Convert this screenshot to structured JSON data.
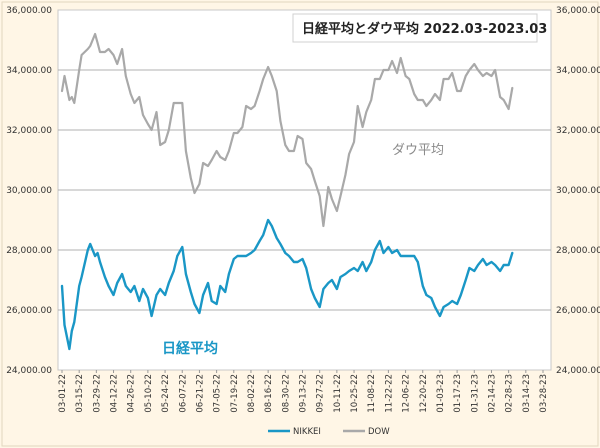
{
  "chart_data": {
    "type": "line",
    "title": "日経平均とダウ平均 2022.03-2023.03",
    "annotations": {
      "dow": "ダウ平均",
      "nikkei": "日経平均"
    },
    "ylim": [
      24000,
      36000
    ],
    "left_ticks": [
      "24,000.00",
      "26,000.00",
      "28,000.00",
      "30,000.00",
      "32,000.00",
      "34,000.00",
      "36,000.00"
    ],
    "right_ticks": [
      "24,000.00",
      "26,000.00",
      "28,000.00",
      "30,000.00",
      "32,000.00",
      "34,000.00",
      "36,000.00"
    ],
    "x_ticks": [
      "03-01-22",
      "03-15-22",
      "03-29-22",
      "04-12-22",
      "04-26-22",
      "05-10-22",
      "05-24-22",
      "06-07-22",
      "06-21-22",
      "07-05-22",
      "07-19-22",
      "08-02-22",
      "08-16-22",
      "08-30-22",
      "09-13-22",
      "09-27-22",
      "10-11-22",
      "10-25-22",
      "11-08-22",
      "11-22-22",
      "12-06-22",
      "12-20-22",
      "01-03-23",
      "01-17-23",
      "01-31-23",
      "02-14-23",
      "02-28-23",
      "03-14-23",
      "03-28-23"
    ],
    "grid": true,
    "legend_position": "bottom",
    "colors": {
      "nikkei": "#1a97c6",
      "dow": "#a9a9a9",
      "plot_bg": "#ffffff",
      "outer_bg": "#fff6e6",
      "grid": "#b0b0b0"
    },
    "series": [
      {
        "name": "NIKKEI",
        "color": "#1a97c6",
        "x": [
          "03-01-22",
          "03-03-22",
          "03-07-22",
          "03-09-22",
          "03-11-22",
          "03-15-22",
          "03-17-22",
          "03-22-22",
          "03-24-22",
          "03-28-22",
          "03-30-22",
          "04-01-22",
          "04-05-22",
          "04-08-22",
          "04-12-22",
          "04-15-22",
          "04-19-22",
          "04-22-22",
          "04-26-22",
          "04-29-22",
          "05-03-22",
          "05-06-22",
          "05-10-22",
          "05-13-22",
          "05-17-22",
          "05-20-22",
          "05-24-22",
          "05-27-22",
          "05-31-22",
          "06-03-22",
          "06-07-22",
          "06-10-22",
          "06-14-22",
          "06-17-22",
          "06-21-22",
          "06-24-22",
          "06-28-22",
          "07-01-22",
          "07-05-22",
          "07-08-22",
          "07-12-22",
          "07-15-22",
          "07-19-22",
          "07-22-22",
          "07-26-22",
          "07-29-22",
          "08-02-22",
          "08-05-22",
          "08-09-22",
          "08-12-22",
          "08-16-22",
          "08-19-22",
          "08-23-22",
          "08-26-22",
          "08-30-22",
          "09-02-22",
          "09-06-22",
          "09-09-22",
          "09-13-22",
          "09-16-22",
          "09-20-22",
          "09-23-22",
          "09-27-22",
          "09-30-22",
          "10-04-22",
          "10-07-22",
          "10-11-22",
          "10-14-22",
          "10-18-22",
          "10-21-22",
          "10-25-22",
          "10-28-22",
          "11-01-22",
          "11-04-22",
          "11-08-22",
          "11-11-22",
          "11-15-22",
          "11-18-22",
          "11-22-22",
          "11-25-22",
          "11-29-22",
          "12-02-22",
          "12-06-22",
          "12-09-22",
          "12-13-22",
          "12-16-22",
          "12-20-22",
          "12-23-22",
          "12-27-22",
          "12-30-22",
          "01-03-23",
          "01-06-23",
          "01-10-23",
          "01-13-23",
          "01-17-23",
          "01-20-23",
          "01-24-23",
          "01-27-23",
          "01-31-23",
          "02-03-23",
          "02-07-23",
          "02-10-23",
          "02-14-23",
          "02-17-23",
          "02-21-23",
          "02-24-23",
          "02-28-23",
          "03-03-23"
        ],
        "values": [
          26800,
          25500,
          24700,
          25300,
          25600,
          26800,
          27100,
          28000,
          28200,
          27800,
          27900,
          27600,
          27100,
          26800,
          26500,
          26900,
          27200,
          26800,
          26600,
          26800,
          26300,
          26700,
          26400,
          25800,
          26500,
          26700,
          26500,
          26900,
          27300,
          27800,
          28100,
          27200,
          26600,
          26200,
          25900,
          26500,
          26900,
          26300,
          26200,
          26800,
          26600,
          27200,
          27700,
          27800,
          27800,
          27800,
          27900,
          28000,
          28300,
          28500,
          29000,
          28800,
          28400,
          28200,
          27900,
          27800,
          27600,
          27600,
          27700,
          27400,
          26700,
          26400,
          26100,
          26700,
          26900,
          27000,
          26700,
          27100,
          27200,
          27300,
          27400,
          27300,
          27600,
          27300,
          27600,
          28000,
          28300,
          27900,
          28100,
          27900,
          28000,
          27800,
          27800,
          27800,
          27800,
          27600,
          26800,
          26500,
          26400,
          26100,
          25800,
          26100,
          26200,
          26300,
          26200,
          26500,
          27000,
          27400,
          27300,
          27500,
          27700,
          27500,
          27600,
          27500,
          27300,
          27500,
          27500,
          27900
        ]
      },
      {
        "name": "DOW",
        "color": "#a9a9a9",
        "x": [
          "03-01-22",
          "03-03-22",
          "03-07-22",
          "03-09-22",
          "03-11-22",
          "03-15-22",
          "03-17-22",
          "03-22-22",
          "03-24-22",
          "03-28-22",
          "03-30-22",
          "04-01-22",
          "04-05-22",
          "04-08-22",
          "04-12-22",
          "04-15-22",
          "04-19-22",
          "04-22-22",
          "04-26-22",
          "04-29-22",
          "05-03-22",
          "05-06-22",
          "05-10-22",
          "05-13-22",
          "05-17-22",
          "05-20-22",
          "05-24-22",
          "05-27-22",
          "05-31-22",
          "06-03-22",
          "06-07-22",
          "06-10-22",
          "06-14-22",
          "06-17-22",
          "06-21-22",
          "06-24-22",
          "06-28-22",
          "07-01-22",
          "07-05-22",
          "07-08-22",
          "07-12-22",
          "07-15-22",
          "07-19-22",
          "07-22-22",
          "07-26-22",
          "07-29-22",
          "08-02-22",
          "08-05-22",
          "08-09-22",
          "08-12-22",
          "08-16-22",
          "08-19-22",
          "08-23-22",
          "08-26-22",
          "08-30-22",
          "09-02-22",
          "09-06-22",
          "09-09-22",
          "09-13-22",
          "09-16-22",
          "09-20-22",
          "09-23-22",
          "09-27-22",
          "09-30-22",
          "10-04-22",
          "10-07-22",
          "10-11-22",
          "10-14-22",
          "10-18-22",
          "10-21-22",
          "10-25-22",
          "10-28-22",
          "11-01-22",
          "11-04-22",
          "11-08-22",
          "11-11-22",
          "11-15-22",
          "11-18-22",
          "11-22-22",
          "11-25-22",
          "11-29-22",
          "12-02-22",
          "12-06-22",
          "12-09-22",
          "12-13-22",
          "12-16-22",
          "12-20-22",
          "12-23-22",
          "12-27-22",
          "12-30-22",
          "01-03-23",
          "01-06-23",
          "01-10-23",
          "01-13-23",
          "01-17-23",
          "01-20-23",
          "01-24-23",
          "01-27-23",
          "01-31-23",
          "02-03-23",
          "02-07-23",
          "02-10-23",
          "02-14-23",
          "02-17-23",
          "02-21-23",
          "02-24-23",
          "02-28-23",
          "03-03-23"
        ],
        "values": [
          33300,
          33800,
          33000,
          33100,
          32900,
          34000,
          34500,
          34700,
          34800,
          35200,
          34900,
          34600,
          34600,
          34700,
          34500,
          34200,
          34700,
          33800,
          33200,
          32900,
          33100,
          32500,
          32200,
          32000,
          32600,
          31500,
          31600,
          32000,
          32900,
          32900,
          32900,
          31300,
          30400,
          29900,
          30200,
          30900,
          30800,
          31000,
          31300,
          31100,
          31000,
          31300,
          31900,
          31900,
          32100,
          32800,
          32700,
          32800,
          33300,
          33700,
          34100,
          33800,
          33300,
          32300,
          31500,
          31300,
          31300,
          31800,
          31700,
          30900,
          30700,
          30300,
          29800,
          28800,
          30100,
          29700,
          29300,
          29800,
          30500,
          31200,
          31600,
          32800,
          32100,
          32600,
          33000,
          33700,
          33700,
          34000,
          34000,
          34300,
          33900,
          34400,
          33800,
          33700,
          33200,
          33000,
          33000,
          32800,
          33000,
          33200,
          33000,
          33700,
          33700,
          33900,
          33300,
          33300,
          33800,
          34000,
          34200,
          34000,
          33800,
          33900,
          33800,
          34000,
          33100,
          33000,
          32700,
          33400
        ]
      }
    ]
  }
}
